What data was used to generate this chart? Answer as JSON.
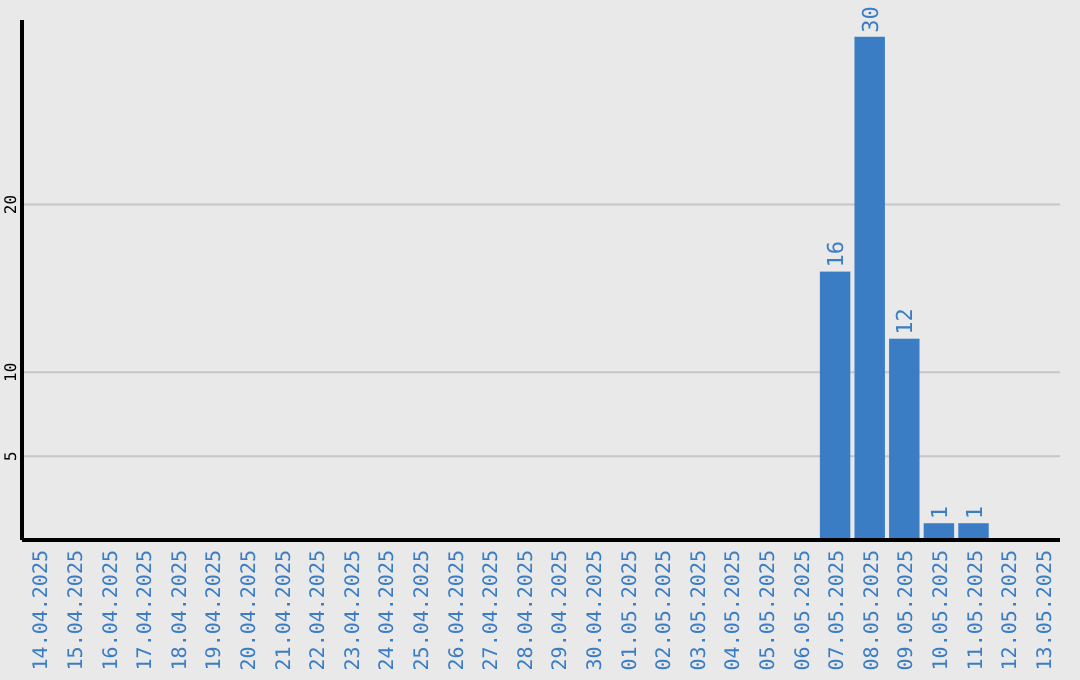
{
  "chart_data": {
    "type": "bar",
    "categories": [
      "14.04.2025",
      "15.04.2025",
      "16.04.2025",
      "17.04.2025",
      "18.04.2025",
      "19.04.2025",
      "20.04.2025",
      "21.04.2025",
      "22.04.2025",
      "23.04.2025",
      "24.04.2025",
      "25.04.2025",
      "26.04.2025",
      "27.04.2025",
      "28.04.2025",
      "29.04.2025",
      "30.04.2025",
      "01.05.2025",
      "02.05.2025",
      "03.05.2025",
      "04.05.2025",
      "05.05.2025",
      "06.05.2025",
      "07.05.2025",
      "08.05.2025",
      "09.05.2025",
      "10.05.2025",
      "11.05.2025",
      "12.05.2025",
      "13.05.2025"
    ],
    "values": [
      0,
      0,
      0,
      0,
      0,
      0,
      0,
      0,
      0,
      0,
      0,
      0,
      0,
      0,
      0,
      0,
      0,
      0,
      0,
      0,
      0,
      0,
      0,
      16,
      30,
      12,
      1,
      1,
      0,
      0
    ],
    "value_labels": [
      null,
      null,
      null,
      null,
      null,
      null,
      null,
      null,
      null,
      null,
      null,
      null,
      null,
      null,
      null,
      null,
      null,
      null,
      null,
      null,
      null,
      null,
      null,
      "16",
      "30",
      "12",
      "1",
      "1",
      null,
      null
    ],
    "color": "#3a7dc5",
    "ylim": [
      0,
      31
    ],
    "yticks": [
      5,
      10,
      20
    ],
    "grid": "y"
  }
}
